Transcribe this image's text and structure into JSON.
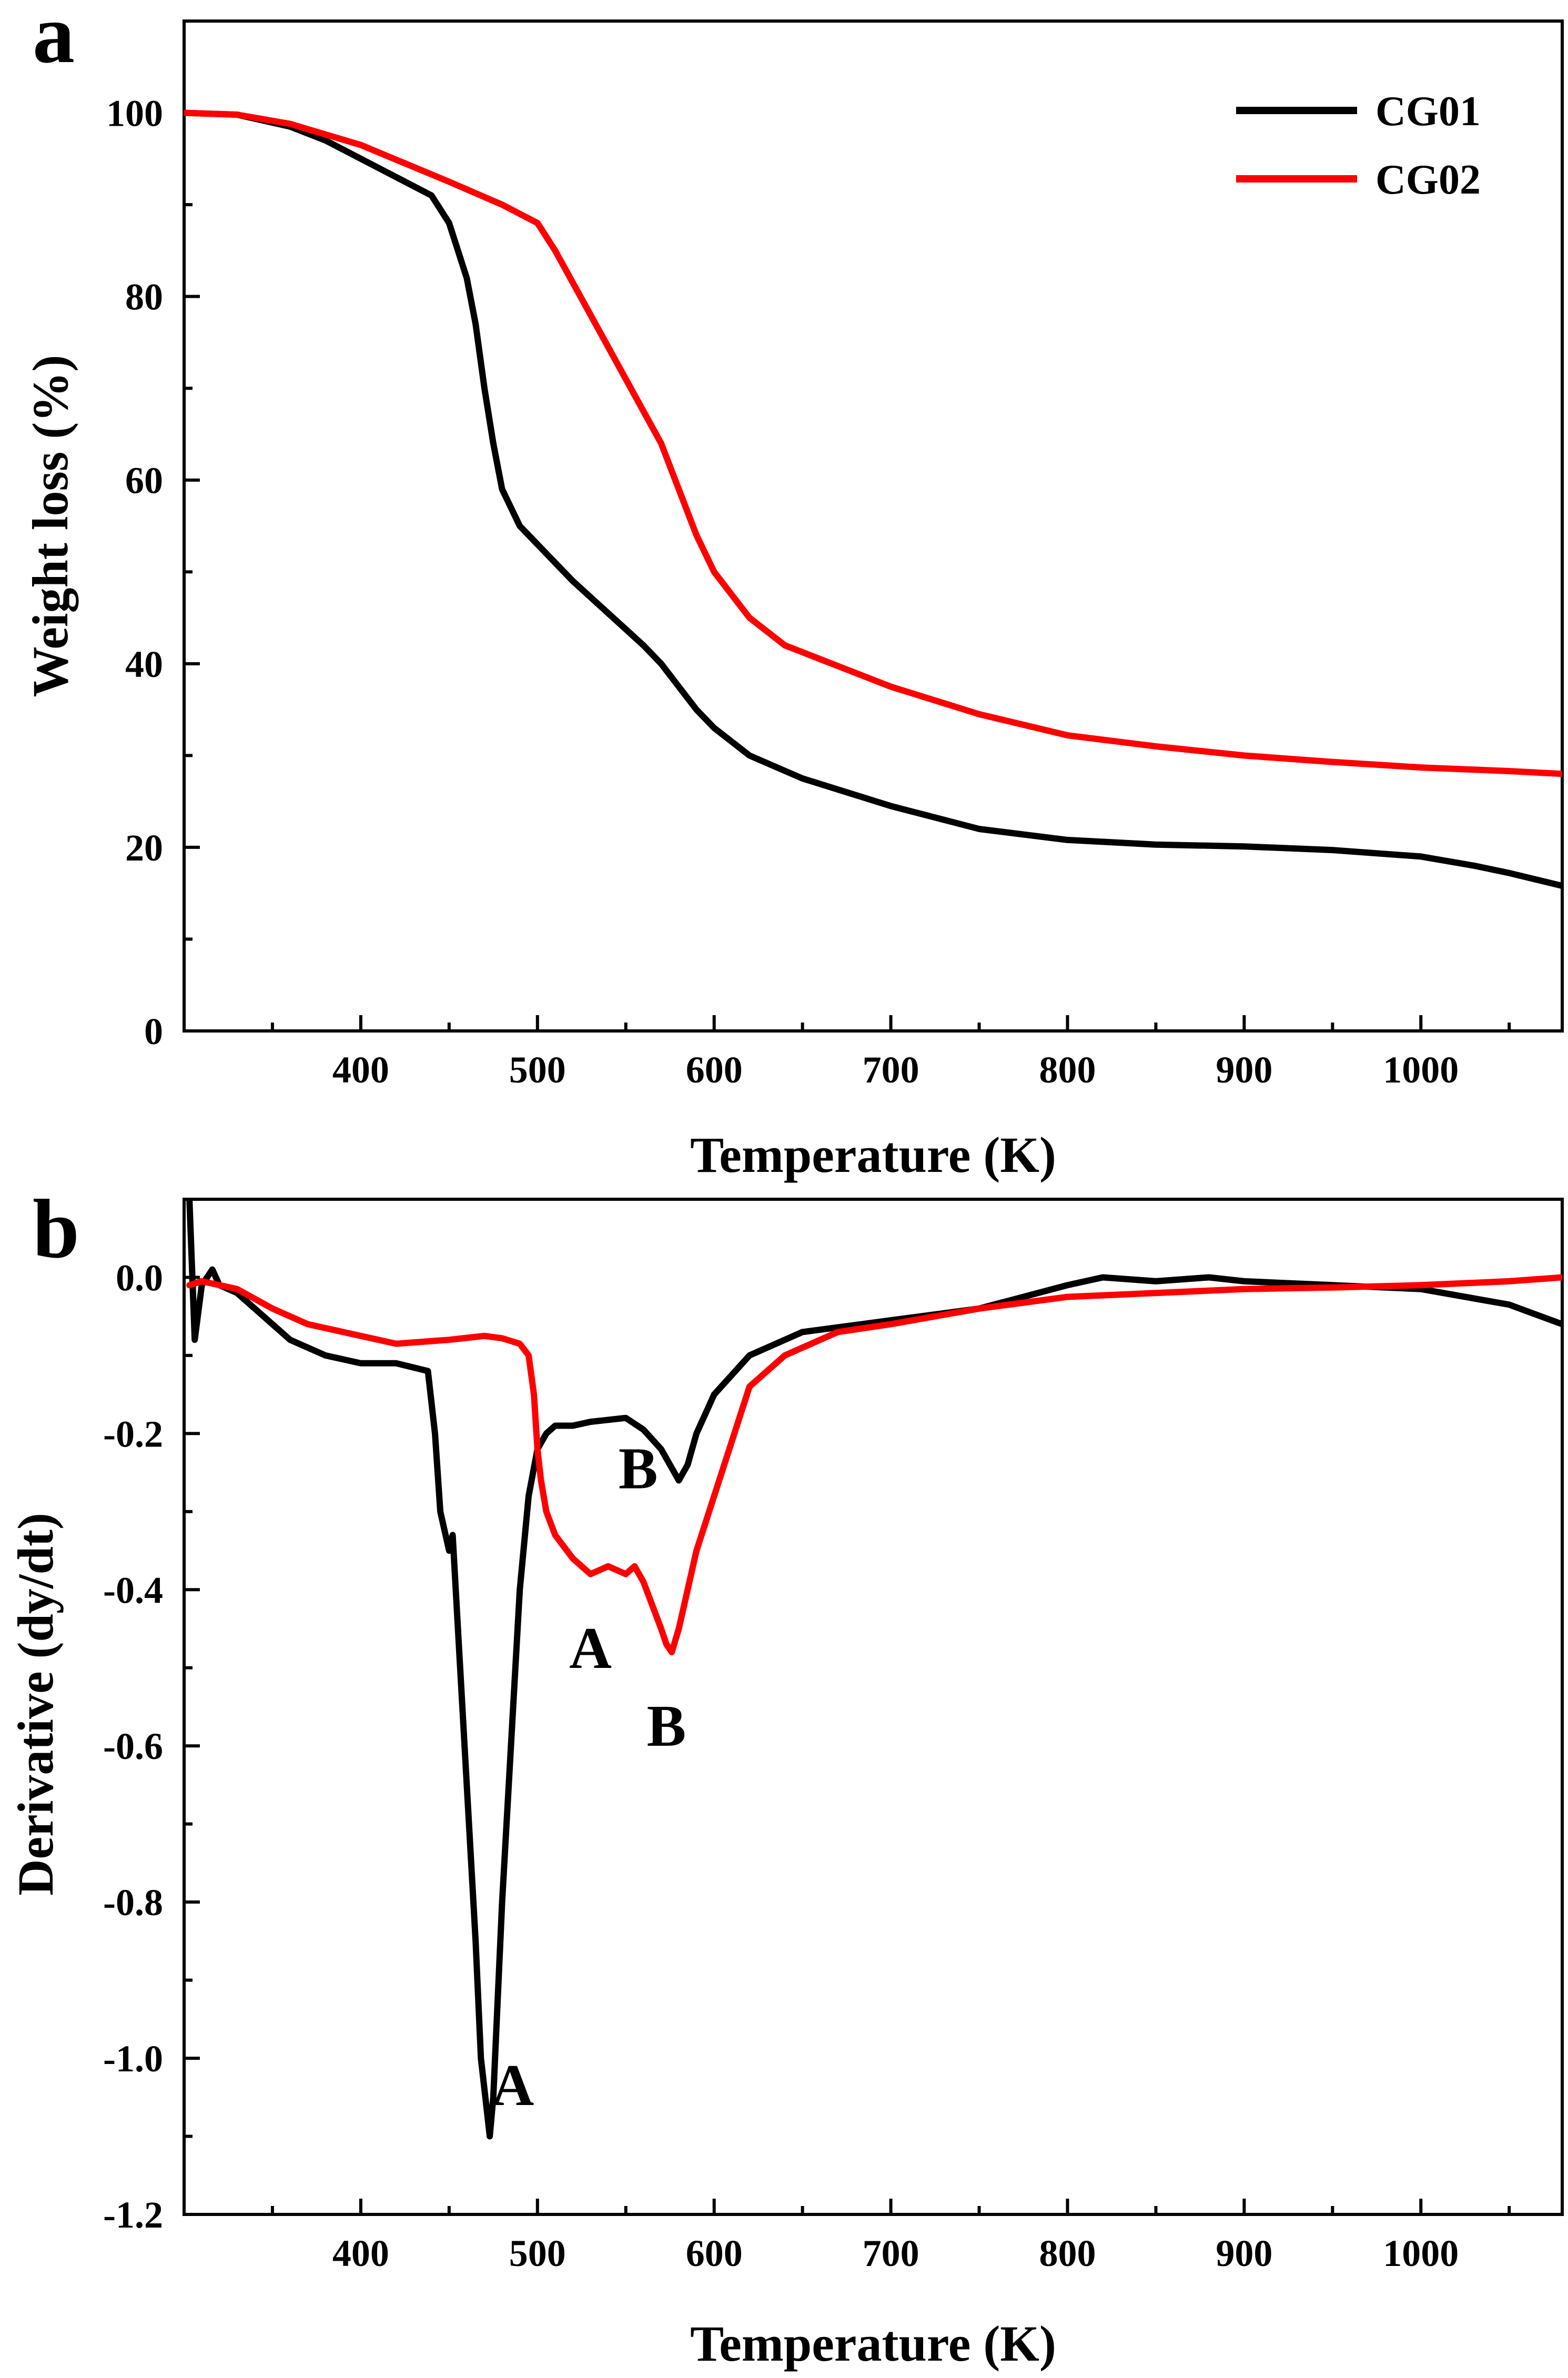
{
  "chart_data": [
    {
      "panel_label": "a",
      "type": "line",
      "xlabel": "Temperature (K)",
      "ylabel": "Weight loss (%)",
      "xlim": [
        300,
        1080
      ],
      "ylim": [
        0,
        110
      ],
      "xticks": [
        400,
        500,
        600,
        700,
        800,
        900,
        1000
      ],
      "yticks": [
        0,
        20,
        40,
        60,
        80,
        100
      ],
      "x_minor_step": 50,
      "y_minor_step": 10,
      "legend_position": "top-right",
      "series": [
        {
          "name": "CG01",
          "color": "#000000",
          "x": [
            300,
            330,
            360,
            380,
            400,
            420,
            440,
            450,
            460,
            465,
            470,
            475,
            480,
            490,
            500,
            510,
            520,
            540,
            560,
            570,
            580,
            590,
            600,
            620,
            650,
            700,
            750,
            800,
            850,
            900,
            950,
            1000,
            1030,
            1050,
            1080
          ],
          "y": [
            100,
            99.8,
            98.5,
            97,
            95,
            93,
            91,
            88,
            82,
            77,
            70,
            64,
            59,
            55,
            53,
            51,
            49,
            45.5,
            42,
            40,
            37.5,
            35,
            33,
            30,
            27.5,
            24.5,
            22,
            20.8,
            20.3,
            20.1,
            19.7,
            19,
            18,
            17.2,
            15.8
          ]
        },
        {
          "name": "CG02",
          "color": "#ff0000",
          "x": [
            300,
            330,
            360,
            400,
            450,
            480,
            495,
            500,
            510,
            530,
            550,
            570,
            580,
            590,
            600,
            620,
            640,
            660,
            700,
            750,
            800,
            850,
            900,
            950,
            1000,
            1050,
            1080
          ],
          "y": [
            100,
            99.8,
            98.8,
            96.5,
            92.5,
            90,
            88.5,
            88,
            85,
            78,
            71,
            64,
            59,
            54,
            50,
            45,
            42,
            40.5,
            37.5,
            34.5,
            32.2,
            31,
            30,
            29.3,
            28.7,
            28.3,
            28
          ]
        }
      ]
    },
    {
      "panel_label": "b",
      "type": "line",
      "xlabel": "Temperature (K)",
      "ylabel": "Derivative (dy/dt)",
      "xlim": [
        300,
        1080
      ],
      "ylim": [
        -1.2,
        0.1
      ],
      "xticks": [
        400,
        500,
        600,
        700,
        800,
        900,
        1000
      ],
      "yticks": [
        -1.2,
        -1.0,
        -0.8,
        -0.6,
        -0.4,
        -0.2,
        0.0
      ],
      "ytick_labels": [
        "-1.2",
        "-1.0",
        "-0.8",
        "-0.6",
        "-0.4",
        "-0.2",
        "0.0"
      ],
      "x_minor_step": 50,
      "y_minor_step": 0.1,
      "series": [
        {
          "name": "CG01",
          "color": "#000000",
          "x": [
            303,
            306,
            310,
            313,
            316,
            320,
            330,
            345,
            360,
            380,
            400,
            420,
            438,
            442,
            445,
            450,
            452,
            455,
            460,
            465,
            468,
            471,
            473,
            475,
            477,
            480,
            485,
            490,
            495,
            500,
            505,
            510,
            520,
            530,
            550,
            560,
            570,
            575,
            580,
            585,
            590,
            600,
            620,
            650,
            700,
            750,
            800,
            820,
            850,
            880,
            900,
            950,
            1000,
            1050,
            1080
          ],
          "y": [
            0.1,
            -0.08,
            -0.01,
            0.0,
            0.01,
            -0.01,
            -0.02,
            -0.05,
            -0.08,
            -0.1,
            -0.11,
            -0.11,
            -0.12,
            -0.2,
            -0.3,
            -0.35,
            -0.33,
            -0.45,
            -0.65,
            -0.85,
            -1.0,
            -1.06,
            -1.1,
            -1.05,
            -0.95,
            -0.8,
            -0.6,
            -0.4,
            -0.28,
            -0.22,
            -0.2,
            -0.19,
            -0.19,
            -0.185,
            -0.18,
            -0.195,
            -0.22,
            -0.24,
            -0.26,
            -0.24,
            -0.2,
            -0.15,
            -0.1,
            -0.07,
            -0.055,
            -0.04,
            -0.01,
            0.0,
            -0.005,
            0.0,
            -0.005,
            -0.01,
            -0.015,
            -0.035,
            -0.06
          ]
        },
        {
          "name": "CG02",
          "color": "#ff0000",
          "x": [
            303,
            310,
            330,
            350,
            370,
            390,
            420,
            450,
            470,
            480,
            490,
            495,
            498,
            500,
            502,
            505,
            510,
            520,
            530,
            540,
            550,
            555,
            560,
            565,
            570,
            573,
            576,
            580,
            585,
            590,
            600,
            620,
            640,
            670,
            700,
            750,
            800,
            850,
            900,
            950,
            1000,
            1050,
            1080
          ],
          "y": [
            -0.01,
            -0.005,
            -0.015,
            -0.04,
            -0.06,
            -0.07,
            -0.085,
            -0.08,
            -0.075,
            -0.078,
            -0.085,
            -0.1,
            -0.15,
            -0.22,
            -0.26,
            -0.3,
            -0.33,
            -0.36,
            -0.38,
            -0.37,
            -0.38,
            -0.37,
            -0.39,
            -0.42,
            -0.45,
            -0.47,
            -0.48,
            -0.45,
            -0.4,
            -0.35,
            -0.28,
            -0.14,
            -0.1,
            -0.07,
            -0.06,
            -0.04,
            -0.025,
            -0.02,
            -0.015,
            -0.013,
            -0.01,
            -0.005,
            0.0
          ]
        }
      ],
      "annotations": [
        {
          "text": "A",
          "series": "CG01",
          "x": 486,
          "y": -1.06
        },
        {
          "text": "B",
          "series": "CG01",
          "x": 557,
          "y": -0.27
        },
        {
          "text": "A",
          "series": "CG02",
          "x": 530,
          "y": -0.5
        },
        {
          "text": "B",
          "series": "CG02",
          "x": 573,
          "y": -0.6
        }
      ]
    }
  ]
}
